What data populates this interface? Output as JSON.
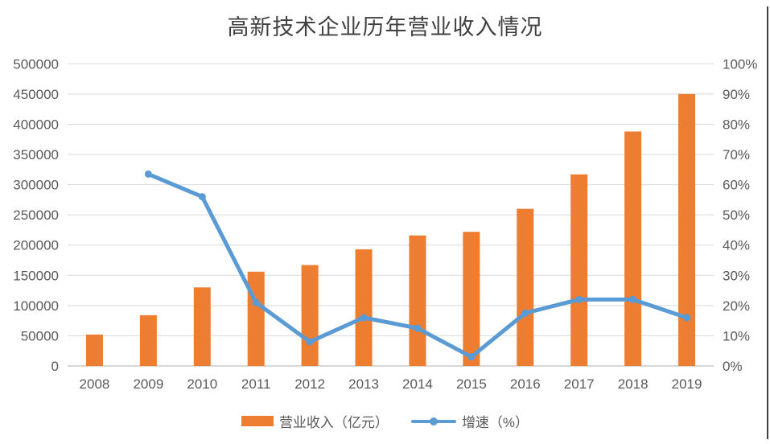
{
  "title": "高新技术企业历年营业收入情况",
  "colors": {
    "bar": "#ED7D31",
    "line": "#5B9BD5",
    "grid": "#D9D9D9",
    "axis_line": "#BFBFBF",
    "tick_label": "#595959",
    "title": "#404040",
    "border": "#3F3F3F"
  },
  "legend": {
    "items": [
      {
        "label": "营业收入（亿元）",
        "type": "bar"
      },
      {
        "label": "增速（%）",
        "type": "line"
      }
    ]
  },
  "chart_data": {
    "type": "bar+line combo",
    "title": "高新技术企业历年营业收入情况",
    "categories": [
      "2008",
      "2009",
      "2010",
      "2011",
      "2012",
      "2013",
      "2014",
      "2015",
      "2016",
      "2017",
      "2018",
      "2019"
    ],
    "series": [
      {
        "name": "营业收入（亿元）",
        "type": "bar",
        "axis": "left",
        "values": [
          52000,
          84000,
          130000,
          156000,
          167000,
          193000,
          216000,
          222000,
          260000,
          317000,
          388000,
          450000
        ]
      },
      {
        "name": "增速（%）",
        "type": "line",
        "axis": "right",
        "values": [
          null,
          63.5,
          56,
          21,
          8,
          16,
          12.5,
          3,
          17.5,
          22,
          22,
          16
        ]
      }
    ],
    "left_axis": {
      "min": 0,
      "max": 500000,
      "step": 50000,
      "tick_labels": [
        "0",
        "50000",
        "100000",
        "150000",
        "200000",
        "250000",
        "300000",
        "350000",
        "400000",
        "450000",
        "500000"
      ]
    },
    "right_axis": {
      "min": 0,
      "max": 100,
      "step": 10,
      "tick_labels": [
        "0%",
        "10%",
        "20%",
        "30%",
        "40%",
        "50%",
        "60%",
        "70%",
        "80%",
        "90%",
        "100%"
      ]
    },
    "grid": true,
    "legend_position": "bottom"
  }
}
